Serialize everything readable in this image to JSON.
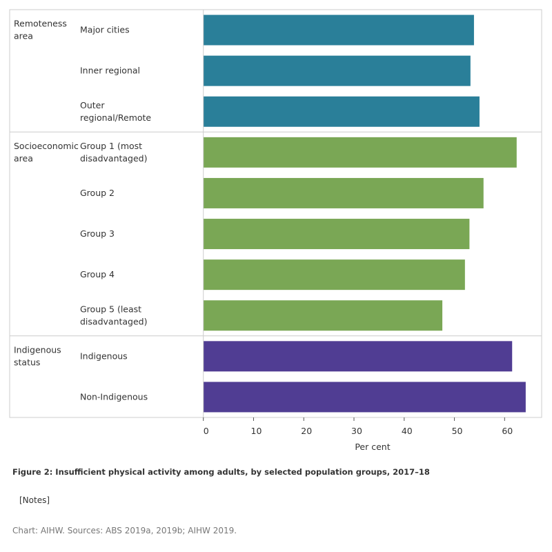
{
  "chart_data": {
    "type": "bar",
    "orientation": "horizontal",
    "xlabel": "Per cent",
    "xlim": [
      0,
      66
    ],
    "xticks": [
      0,
      10,
      20,
      30,
      40,
      50,
      60
    ],
    "groups": [
      {
        "name": "Remoteness area",
        "color": "#2a7f99",
        "categories": [
          "Major cities",
          "Inner regional",
          "Outer regional/Remote"
        ],
        "values": [
          53.9,
          53.2,
          55.0
        ]
      },
      {
        "name": "Socioeconomic area",
        "color": "#7aa755",
        "categories": [
          "Group 1 (most disadvantaged)",
          "Group 2",
          "Group 3",
          "Group 4",
          "Group 5 (least disadvantaged)"
        ],
        "values": [
          62.4,
          55.8,
          53.0,
          52.1,
          47.6
        ]
      },
      {
        "name": "Indigenous status",
        "color": "#503d93",
        "categories": [
          "Indigenous",
          "Non-Indigenous"
        ],
        "values": [
          61.5,
          64.2
        ]
      }
    ]
  },
  "caption": {
    "title": "Figure 2: Insufficient physical activity among adults, by selected population groups,  2017–18",
    "notes": "[Notes]",
    "source": "Chart: AIHW.  Sources: ABS 2019a, 2019b; AIHW 2019."
  }
}
